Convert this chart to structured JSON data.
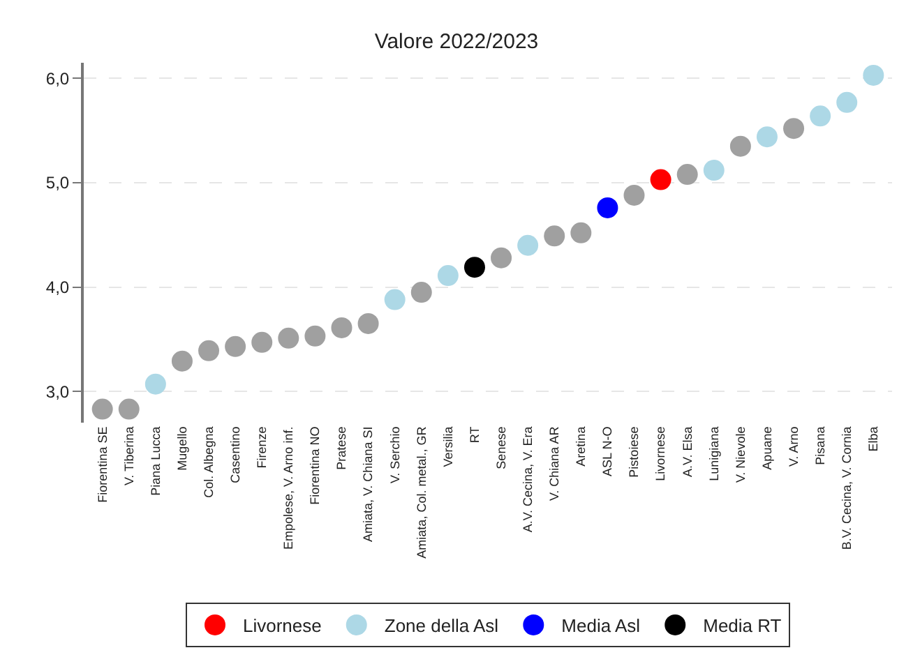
{
  "chart_data": {
    "type": "scatter",
    "title": "Valore 2022/2023",
    "categories": [
      "Fiorentina SE",
      "V. Tiberina",
      "Piana Lucca",
      "Mugello",
      "Col. Albegna",
      "Casentino",
      "Firenze",
      "Empolese, V. Arno inf.",
      "Fiorentina NO",
      "Pratese",
      "Amiata, V. Chiana SI",
      "V. Serchio",
      "Amiata, Col. metal., GR",
      "Versilia",
      "RT",
      "Senese",
      "A.V. Cecina, V. Era",
      "V. Chiana AR",
      "Aretina",
      "ASL N-O",
      "Pistoiese",
      "Livornese",
      "A.V. Elsa",
      "Lunigiana",
      "V. Nievole",
      "Apuane",
      "V. Arno",
      "Pisana",
      "B.V. Cecina, V. Cornia",
      "Elba"
    ],
    "series": [
      {
        "color": "#a0a0a0",
        "values": [
          2.83,
          2.83,
          null,
          3.29,
          3.39,
          3.43,
          3.47,
          3.51,
          3.53,
          3.61,
          3.65,
          null,
          3.95,
          null,
          null,
          4.28,
          null,
          4.49,
          4.52,
          null,
          4.88,
          null,
          5.08,
          null,
          5.35,
          null,
          5.52,
          null,
          null,
          null
        ]
      },
      {
        "name": "Livornese",
        "color": "#ff0000",
        "values": [
          null,
          null,
          null,
          null,
          null,
          null,
          null,
          null,
          null,
          null,
          null,
          null,
          null,
          null,
          null,
          null,
          null,
          null,
          null,
          null,
          null,
          5.03,
          null,
          null,
          null,
          null,
          null,
          null,
          null,
          null
        ]
      },
      {
        "name": "Zone della Asl",
        "color": "#add8e6",
        "values": [
          null,
          null,
          3.07,
          null,
          null,
          null,
          null,
          null,
          null,
          null,
          null,
          3.88,
          null,
          4.11,
          null,
          null,
          4.4,
          null,
          null,
          null,
          null,
          null,
          null,
          5.12,
          null,
          5.44,
          null,
          5.64,
          5.77,
          6.03
        ]
      },
      {
        "name": "Media Asl",
        "color": "#0000ff",
        "values": [
          null,
          null,
          null,
          null,
          null,
          null,
          null,
          null,
          null,
          null,
          null,
          null,
          null,
          null,
          null,
          null,
          null,
          null,
          null,
          4.76,
          null,
          null,
          null,
          null,
          null,
          null,
          null,
          null,
          null,
          null
        ]
      },
      {
        "name": "Media RT",
        "color": "#000000",
        "values": [
          null,
          null,
          null,
          null,
          null,
          null,
          null,
          null,
          null,
          null,
          null,
          null,
          null,
          null,
          4.19,
          null,
          null,
          null,
          null,
          null,
          null,
          null,
          null,
          null,
          null,
          null,
          null,
          null,
          null,
          null
        ]
      }
    ],
    "ylim": [
      2.7,
      6.15
    ],
    "yticks": [
      {
        "value": 3,
        "label": "3,0"
      },
      {
        "value": 4,
        "label": "4,0"
      },
      {
        "value": 5,
        "label": "5,0"
      },
      {
        "value": 6,
        "label": "6,0"
      }
    ],
    "grid": "y",
    "legend": "bottom"
  }
}
